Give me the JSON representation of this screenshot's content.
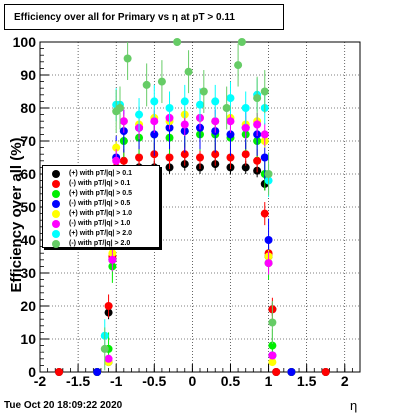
{
  "title": "Efficiency over all for Primary vs   η at pT > 0.11",
  "footer": "Tue Oct 20 18:09:22 2020",
  "chart_data": {
    "type": "scatter",
    "title": "Efficiency over all for Primary vs   η at pT > 0.11",
    "xlabel": "η",
    "ylabel": "Efficiency over all (%)",
    "xlim": [
      -2,
      2.2
    ],
    "ylim": [
      0,
      100
    ],
    "grid": true,
    "legend_placement": "middle-left",
    "x_ticks": [
      "-2",
      "-1.5",
      "-1",
      "-0.5",
      "0",
      "0.5",
      "1",
      "1.5",
      "2"
    ],
    "y_ticks": [
      "0",
      "10",
      "20",
      "30",
      "40",
      "50",
      "60",
      "70",
      "80",
      "90",
      "100"
    ],
    "series": [
      {
        "name": "(+) with pT/|q| > 0.1",
        "color": "#000000",
        "x": [
          -1.75,
          -1.25,
          -1.1,
          -1.05,
          -1.0,
          -0.9,
          -0.7,
          -0.5,
          -0.3,
          -0.1,
          0.1,
          0.3,
          0.5,
          0.7,
          0.85,
          0.95,
          1.0,
          1.05,
          1.1,
          1.3,
          1.75
        ],
        "y": [
          0,
          0,
          18,
          34,
          60,
          61,
          62,
          62,
          62,
          63,
          62,
          63,
          62,
          62,
          61,
          57,
          35,
          19,
          0,
          0,
          0
        ]
      },
      {
        "name": "(-) with pT/|q| > 0.1",
        "color": "#ff0000",
        "x": [
          -1.75,
          -1.25,
          -1.1,
          -1.05,
          -1.0,
          -0.9,
          -0.7,
          -0.5,
          -0.3,
          -0.1,
          0.1,
          0.3,
          0.5,
          0.7,
          0.85,
          0.95,
          1.0,
          1.05,
          1.1,
          1.3,
          1.75
        ],
        "y": [
          0,
          0,
          20,
          35,
          62,
          64,
          65,
          66,
          65,
          66,
          65,
          66,
          65,
          66,
          64,
          48,
          36,
          19,
          0,
          0,
          0
        ]
      },
      {
        "name": "(+) with pT/|q| > 0.5",
        "color": "#00ee00",
        "x": [
          -1.25,
          -1.1,
          -1.05,
          -1.0,
          -0.9,
          -0.7,
          -0.5,
          -0.3,
          -0.1,
          0.1,
          0.3,
          0.5,
          0.7,
          0.85,
          0.95,
          1.0,
          1.05,
          1.3
        ],
        "y": [
          0,
          7,
          32,
          55,
          70,
          71,
          72,
          71,
          73,
          72,
          72,
          71,
          72,
          70,
          60,
          33,
          8,
          0
        ]
      },
      {
        "name": "(-) with pT/|q| > 0.5",
        "color": "#0000ff",
        "x": [
          -1.25,
          -1.1,
          -1.05,
          -1.0,
          -0.9,
          -0.7,
          -0.5,
          -0.3,
          -0.1,
          0.1,
          0.3,
          0.5,
          0.7,
          0.85,
          0.95,
          1.0,
          1.05,
          1.3
        ],
        "y": [
          0,
          3,
          40,
          65,
          73,
          74,
          72,
          74,
          73,
          74,
          73,
          72,
          74,
          72,
          65,
          40,
          5,
          0
        ]
      },
      {
        "name": "(+) with pT/|q| > 1.0",
        "color": "#ffff00",
        "x": [
          -1.1,
          -1.05,
          -1.0,
          -0.9,
          -0.7,
          -0.5,
          -0.3,
          -0.1,
          0.1,
          0.3,
          0.5,
          0.7,
          0.85,
          0.95,
          1.0,
          1.05
        ],
        "y": [
          3,
          36,
          68,
          76,
          75,
          77,
          76,
          78,
          77,
          76,
          77,
          75,
          76,
          70,
          35,
          3
        ]
      },
      {
        "name": "(-) with pT/|q| > 1.0",
        "color": "#ff00ff",
        "x": [
          -1.1,
          -1.05,
          -1.0,
          -0.9,
          -0.7,
          -0.5,
          -0.3,
          -0.1,
          0.1,
          0.3,
          0.5,
          0.7,
          0.85,
          0.95,
          1.0,
          1.05
        ],
        "y": [
          4,
          34,
          64,
          76,
          74,
          76,
          77,
          75,
          77,
          76,
          76,
          74,
          75,
          72,
          33,
          5
        ]
      },
      {
        "name": "(+) with pT/|q| > 2.0",
        "color": "#00ffff",
        "x": [
          -1.15,
          -1.05,
          -1.0,
          -0.95,
          -0.7,
          -0.5,
          -0.3,
          -0.1,
          0.1,
          0.3,
          0.5,
          0.7,
          0.85,
          0.95,
          1.0
        ],
        "y": [
          11,
          57,
          81,
          81,
          78,
          82,
          80,
          82,
          81,
          82,
          83,
          80,
          84,
          80,
          58
        ]
      },
      {
        "name": "(-) with pT/|q| > 2.0",
        "color": "#66cc66",
        "x": [
          -1.15,
          -1.05,
          -1.0,
          -0.95,
          -0.85,
          -0.6,
          -0.4,
          -0.2,
          -0.05,
          0.15,
          0.45,
          0.6,
          0.65,
          0.85,
          0.95,
          1.0,
          1.05
        ],
        "y": [
          7,
          47,
          79,
          80,
          95,
          87,
          88,
          100,
          91,
          85,
          80,
          93,
          100,
          83,
          85,
          60,
          15
        ]
      }
    ]
  }
}
